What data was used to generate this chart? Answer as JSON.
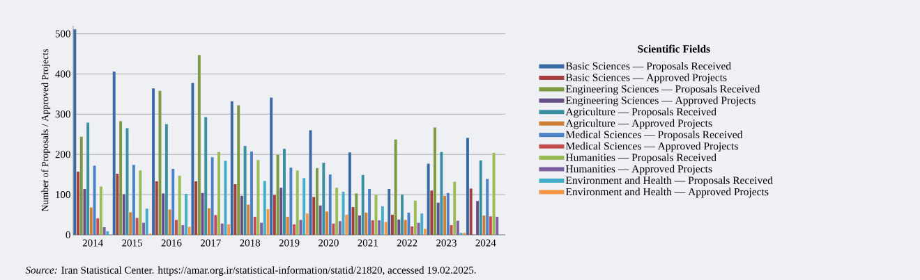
{
  "chart_data": {
    "type": "bar",
    "ylabel": "Number of Proposals / Approved Projects",
    "legend_title": "Scientific Fields",
    "categories": [
      "2014",
      "2015",
      "2016",
      "2017",
      "2018",
      "2019",
      "2020",
      "2021",
      "2022",
      "2023",
      "2024"
    ],
    "series": [
      {
        "name": "Basic Sciences — Proposals Received",
        "color": "#3a6aa5",
        "values": [
          511,
          406,
          364,
          378,
          332,
          341,
          260,
          205,
          114,
          177,
          241
        ]
      },
      {
        "name": "Basic Sciences — Approved Projects",
        "color": "#a33f3c",
        "values": [
          157,
          152,
          133,
          133,
          126,
          99,
          94,
          69,
          50,
          110,
          115
        ]
      },
      {
        "name": "Engineering Sciences — Proposals Received",
        "color": "#7d9a42",
        "values": [
          244,
          283,
          358,
          447,
          322,
          199,
          166,
          103,
          237,
          267,
          null
        ]
      },
      {
        "name": "Engineering Sciences — Approved Projects",
        "color": "#664f87",
        "values": [
          114,
          101,
          103,
          104,
          97,
          117,
          73,
          48,
          38,
          80,
          84
        ]
      },
      {
        "name": "Agriculture — Proposals Received",
        "color": "#3a8fa0",
        "values": [
          279,
          265,
          275,
          293,
          221,
          214,
          179,
          149,
          100,
          206,
          185
        ]
      },
      {
        "name": "Agriculture — Approved Projects",
        "color": "#d07f36",
        "values": [
          68,
          56,
          63,
          66,
          75,
          45,
          58,
          55,
          37,
          97,
          48
        ]
      },
      {
        "name": "Medical Sciences — Proposals Received",
        "color": "#4a80c6",
        "values": [
          172,
          174,
          164,
          193,
          207,
          167,
          150,
          114,
          55,
          104,
          139
        ]
      },
      {
        "name": "Medical Sciences — Approved Projects",
        "color": "#c44d4d",
        "values": [
          41,
          42,
          37,
          49,
          45,
          26,
          28,
          36,
          21,
          24,
          46
        ]
      },
      {
        "name": "Humanities — Proposals Received",
        "color": "#9bbb55",
        "values": [
          120,
          160,
          147,
          206,
          186,
          160,
          117,
          99,
          85,
          132,
          204
        ]
      },
      {
        "name": "Humanities — Approved Projects",
        "color": "#7e61a3",
        "values": [
          19,
          30,
          24,
          28,
          30,
          37,
          34,
          36,
          30,
          35,
          45
        ]
      },
      {
        "name": "Environment and Health — Proposals Received",
        "color": "#44adc9",
        "values": [
          9,
          65,
          102,
          184,
          134,
          141,
          107,
          71,
          53,
          5,
          null
        ]
      },
      {
        "name": "Environment and Health — Approved Projects",
        "color": "#f79745",
        "values": [
          null,
          3,
          20,
          26,
          64,
          53,
          50,
          32,
          15,
          5,
          null
        ]
      }
    ],
    "ylim": [
      0,
      520
    ],
    "yticks": [
      0,
      100,
      200,
      300,
      400,
      500
    ],
    "grid": "y",
    "legend": "right",
    "annotations": [
      "*Source:* Iran Statistical Center. https://amar.org.ir/statistical-information/statid/21820, accessed 19.02.2025."
    ]
  }
}
